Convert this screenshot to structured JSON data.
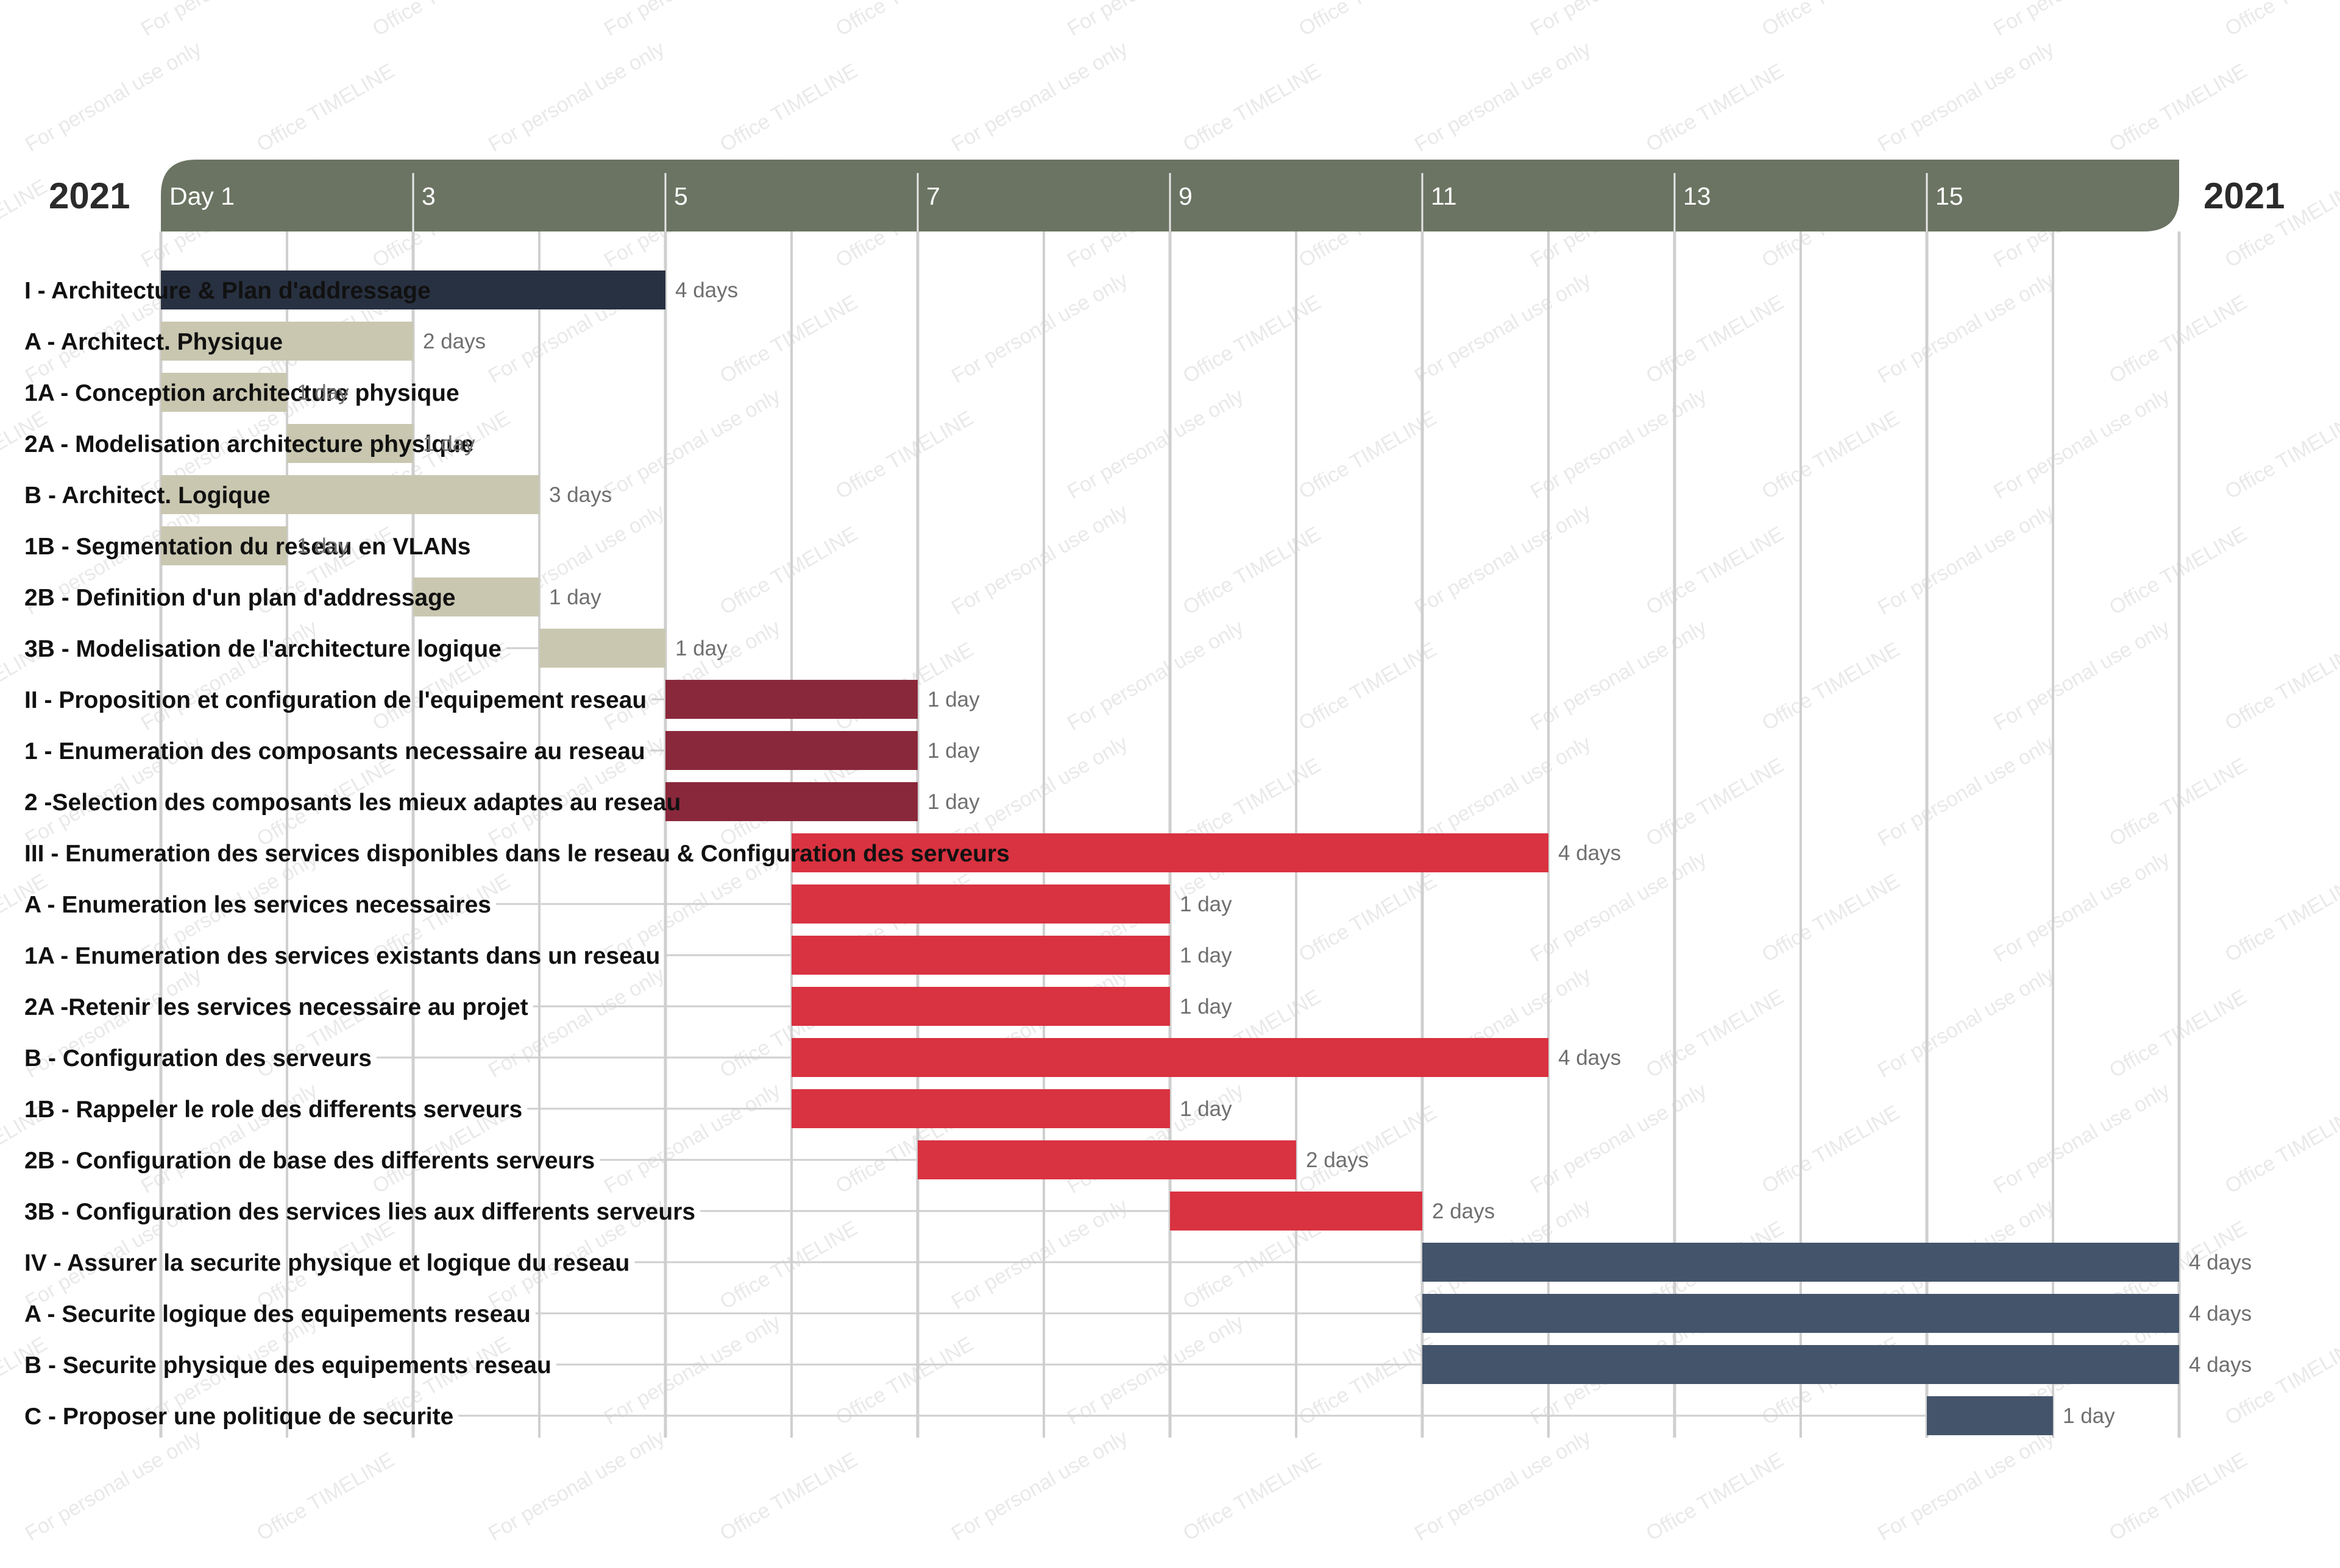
{
  "chart_data": {
    "type": "gantt",
    "year_left": "2021",
    "year_right": "2021",
    "x_unit": "day",
    "xlim": [
      1,
      17
    ],
    "ticks": [
      {
        "day": 1,
        "label": "Day 1"
      },
      {
        "day": 3,
        "label": "3"
      },
      {
        "day": 5,
        "label": "5"
      },
      {
        "day": 7,
        "label": "7"
      },
      {
        "day": 9,
        "label": "9"
      },
      {
        "day": 11,
        "label": "11"
      },
      {
        "day": 13,
        "label": "13"
      },
      {
        "day": 15,
        "label": "15"
      }
    ],
    "watermark": [
      "Office TIMELINE",
      "For personal use only"
    ],
    "tasks": [
      {
        "label": "I - Architecture & Plan d'addressage",
        "start": 1,
        "end": 5,
        "duration": "4 days",
        "color": "#283141"
      },
      {
        "label": "A - Architect. Physique",
        "start": 1,
        "end": 3,
        "duration": "2 days",
        "color": "#c9c7b0"
      },
      {
        "label": "1A - Conception architecture physique",
        "start": 1,
        "end": 2,
        "duration": "1 day",
        "color": "#c9c7b0"
      },
      {
        "label": "2A - Modelisation architecture physique",
        "start": 2,
        "end": 3,
        "duration": "1 day",
        "color": "#c9c7b0"
      },
      {
        "label": "B - Architect. Logique",
        "start": 1,
        "end": 4,
        "duration": "3 days",
        "color": "#c9c7b0"
      },
      {
        "label": "1B - Segmentation du reseau en VLANs",
        "start": 1,
        "end": 2,
        "duration": "1 day",
        "color": "#c9c7b0"
      },
      {
        "label": "2B - Definition d'un plan d'addressage",
        "start": 3,
        "end": 4,
        "duration": "1 day",
        "color": "#c9c7b0"
      },
      {
        "label": "3B - Modelisation de l'architecture logique",
        "start": 4,
        "end": 5,
        "duration": "1 day",
        "color": "#c9c7b0"
      },
      {
        "label": "II - Proposition et configuration de l'equipement reseau",
        "start": 5,
        "end": 7,
        "duration": "1 day",
        "color": "#8a283b"
      },
      {
        "label": "1 - Enumeration des composants necessaire au reseau",
        "start": 5,
        "end": 7,
        "duration": "1 day",
        "color": "#8a283b"
      },
      {
        "label": "2 -Selection des composants les mieux adaptes au reseau",
        "start": 5,
        "end": 7,
        "duration": "1 day",
        "color": "#8a283b"
      },
      {
        "label": "III - Enumeration des services disponibles dans le reseau & Configuration des serveurs",
        "start": 6,
        "end": 12,
        "duration": "4 days",
        "color": "#d93240"
      },
      {
        "label": "A - Enumeration les services necessaires",
        "start": 6,
        "end": 9,
        "duration": "1 day",
        "color": "#d93240"
      },
      {
        "label": "1A - Enumeration des services existants dans un reseau",
        "start": 6,
        "end": 9,
        "duration": "1 day",
        "color": "#d93240"
      },
      {
        "label": "2A -Retenir les services necessaire au projet",
        "start": 6,
        "end": 9,
        "duration": "1 day",
        "color": "#d93240"
      },
      {
        "label": "B - Configuration des serveurs",
        "start": 6,
        "end": 12,
        "duration": "4 days",
        "color": "#d93240"
      },
      {
        "label": "1B - Rappeler le role des differents serveurs",
        "start": 6,
        "end": 9,
        "duration": "1 day",
        "color": "#d93240"
      },
      {
        "label": "2B - Configuration de base des differents serveurs",
        "start": 7,
        "end": 10,
        "duration": "2 days",
        "color": "#d93240"
      },
      {
        "label": "3B - Configuration des services lies aux differents serveurs",
        "start": 9,
        "end": 11,
        "duration": "2 days",
        "color": "#d93240"
      },
      {
        "label": "IV - Assurer la securite physique et logique du reseau",
        "start": 11,
        "end": 17,
        "duration": "4 days",
        "color": "#44546a"
      },
      {
        "label": "A - Securite logique des equipements reseau",
        "start": 11,
        "end": 17,
        "duration": "4 days",
        "color": "#44546a"
      },
      {
        "label": "B - Securite physique des equipements reseau",
        "start": 11,
        "end": 17,
        "duration": "4 days",
        "color": "#44546a"
      },
      {
        "label": "C - Proposer une politique de securite",
        "start": 15,
        "end": 16,
        "duration": "1 day",
        "color": "#44546a"
      }
    ],
    "header_color": "#6b7462",
    "grid_color": "#cfcfcf"
  }
}
